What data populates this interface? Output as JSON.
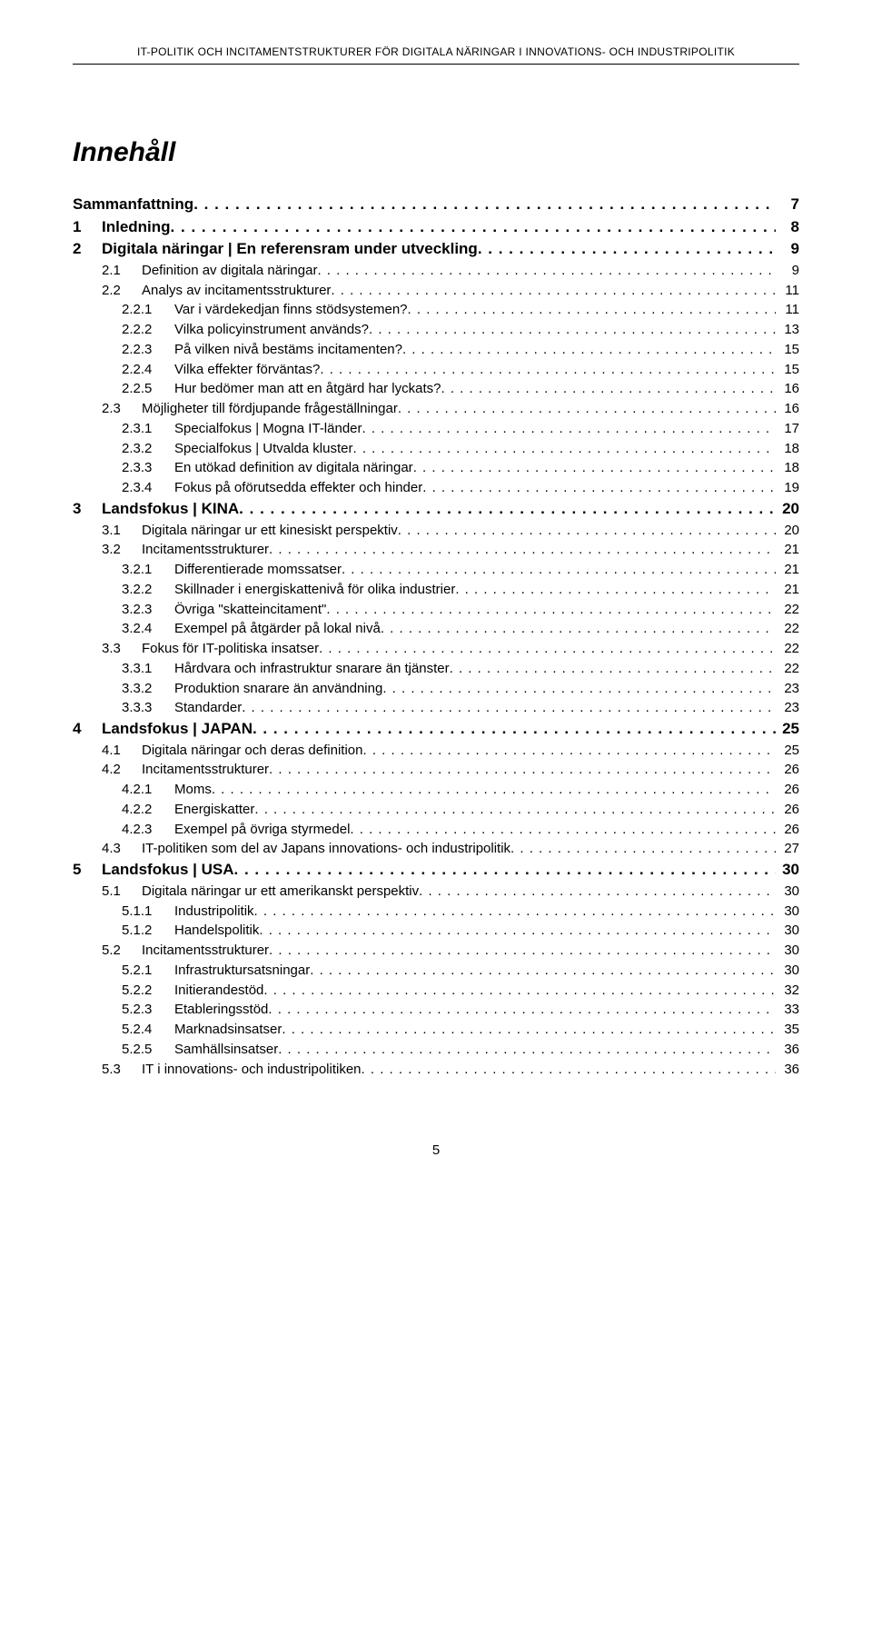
{
  "header": "IT-POLITIK OCH INCITAMENTSTRUKTURER FÖR DIGITALA NÄRINGAR I INNOVATIONS- OCH INDUSTRIPOLITIK",
  "title": "Innehåll",
  "page_number": "5",
  "toc": [
    {
      "level": 0,
      "num": "",
      "label": "Sammanfattning",
      "page": "7"
    },
    {
      "level": 1,
      "num": "1",
      "label": "Inledning",
      "page": "8"
    },
    {
      "level": 1,
      "num": "2",
      "label": "Digitala näringar | En referensram under utveckling",
      "page": "9"
    },
    {
      "level": 2,
      "num": "2.1",
      "label": "Definition av digitala näringar",
      "page": "9"
    },
    {
      "level": 2,
      "num": "2.2",
      "label": "Analys av incitamentsstrukturer",
      "page": "11"
    },
    {
      "level": 3,
      "num": "2.2.1",
      "label": "Var i värdekedjan finns stödsystemen?",
      "page": "11"
    },
    {
      "level": 3,
      "num": "2.2.2",
      "label": "Vilka policyinstrument används?",
      "page": "13"
    },
    {
      "level": 3,
      "num": "2.2.3",
      "label": "På vilken nivå bestäms incitamenten?",
      "page": "15"
    },
    {
      "level": 3,
      "num": "2.2.4",
      "label": "Vilka effekter förväntas?",
      "page": "15"
    },
    {
      "level": 3,
      "num": "2.2.5",
      "label": "Hur bedömer man att en åtgärd har lyckats?",
      "page": "16"
    },
    {
      "level": 2,
      "num": "2.3",
      "label": "Möjligheter till fördjupande frågeställningar",
      "page": "16"
    },
    {
      "level": 3,
      "num": "2.3.1",
      "label": "Specialfokus | Mogna IT-länder",
      "page": "17"
    },
    {
      "level": 3,
      "num": "2.3.2",
      "label": "Specialfokus | Utvalda kluster",
      "page": "18"
    },
    {
      "level": 3,
      "num": "2.3.3",
      "label": "En utökad definition av digitala näringar",
      "page": "18"
    },
    {
      "level": 3,
      "num": "2.3.4",
      "label": "Fokus på oförutsedda effekter och hinder",
      "page": "19"
    },
    {
      "level": 1,
      "num": "3",
      "label": "Landsfokus | KINA",
      "page": "20"
    },
    {
      "level": 2,
      "num": "3.1",
      "label": "Digitala näringar ur ett kinesiskt perspektiv",
      "page": "20"
    },
    {
      "level": 2,
      "num": "3.2",
      "label": "Incitamentsstrukturer",
      "page": "21"
    },
    {
      "level": 3,
      "num": "3.2.1",
      "label": "Differentierade momssatser",
      "page": "21"
    },
    {
      "level": 3,
      "num": "3.2.2",
      "label": "Skillnader i energiskattenivå för olika industrier",
      "page": "21"
    },
    {
      "level": 3,
      "num": "3.2.3",
      "label": "Övriga \"skatteincitament\"",
      "page": "22"
    },
    {
      "level": 3,
      "num": "3.2.4",
      "label": "Exempel på åtgärder på lokal nivå",
      "page": "22"
    },
    {
      "level": 2,
      "num": "3.3",
      "label": "Fokus för IT-politiska insatser",
      "page": "22"
    },
    {
      "level": 3,
      "num": "3.3.1",
      "label": "Hårdvara och infrastruktur snarare än tjänster",
      "page": "22"
    },
    {
      "level": 3,
      "num": "3.3.2",
      "label": "Produktion snarare än användning",
      "page": "23"
    },
    {
      "level": 3,
      "num": "3.3.3",
      "label": "Standarder",
      "page": "23"
    },
    {
      "level": 1,
      "num": "4",
      "label": "Landsfokus | JAPAN",
      "page": "25"
    },
    {
      "level": 2,
      "num": "4.1",
      "label": "Digitala näringar och deras definition",
      "page": "25"
    },
    {
      "level": 2,
      "num": "4.2",
      "label": "Incitamentsstrukturer",
      "page": "26"
    },
    {
      "level": 3,
      "num": "4.2.1",
      "label": "Moms",
      "page": "26"
    },
    {
      "level": 3,
      "num": "4.2.2",
      "label": "Energiskatter",
      "page": "26"
    },
    {
      "level": 3,
      "num": "4.2.3",
      "label": "Exempel på övriga styrmedel",
      "page": "26"
    },
    {
      "level": 2,
      "num": "4.3",
      "label": "IT-politiken som del av Japans innovations- och industripolitik",
      "page": "27"
    },
    {
      "level": 1,
      "num": "5",
      "label": "Landsfokus | USA",
      "page": "30"
    },
    {
      "level": 2,
      "num": "5.1",
      "label": "Digitala näringar ur ett amerikanskt perspektiv",
      "page": "30"
    },
    {
      "level": 3,
      "num": "5.1.1",
      "label": "Industripolitik",
      "page": "30"
    },
    {
      "level": 3,
      "num": "5.1.2",
      "label": "Handelspolitik",
      "page": "30"
    },
    {
      "level": 2,
      "num": "5.2",
      "label": "Incitamentsstrukturer",
      "page": "30"
    },
    {
      "level": 3,
      "num": "5.2.1",
      "label": "Infrastruktursatsningar",
      "page": "30"
    },
    {
      "level": 3,
      "num": "5.2.2",
      "label": "Initierandestöd",
      "page": "32"
    },
    {
      "level": 3,
      "num": "5.2.3",
      "label": "Etableringsstöd",
      "page": "33"
    },
    {
      "level": 3,
      "num": "5.2.4",
      "label": "Marknadsinsatser",
      "page": "35"
    },
    {
      "level": 3,
      "num": "5.2.5",
      "label": "Samhällsinsatser",
      "page": "36"
    },
    {
      "level": 2,
      "num": "5.3",
      "label": "IT i innovations- och industripolitiken",
      "page": "36"
    }
  ]
}
